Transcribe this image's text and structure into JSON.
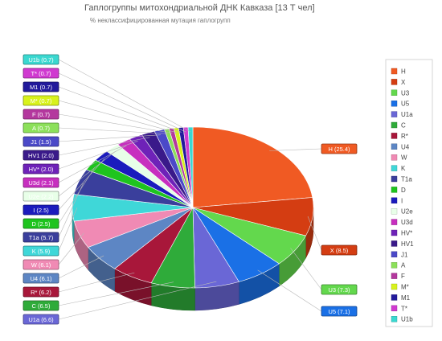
{
  "title": "Гаплогруппы митохондриальной ДНК Кавказа [13 Т чел]",
  "subtitle": "% неклассифицированная мутация гаплогрупп",
  "chart_data": {
    "type": "pie",
    "title": "Гаплогруппы митохондриальной ДНК Кавказа [13 Т чел]",
    "subtitle": "% неклассифицированная мутация гаплогрупп",
    "legend_position": "right",
    "three_d": true,
    "slices": [
      {
        "label": "H",
        "value": 25.4,
        "color": "#f05a23",
        "label_text": "H (25.4)",
        "label_side": "right"
      },
      {
        "label": "X",
        "value": 8.5,
        "color": "#d43d12",
        "label_text": "X (8.5)",
        "label_side": "right"
      },
      {
        "label": "U3",
        "value": 7.3,
        "color": "#63d84d",
        "label_text": "U3 (7.3)",
        "label_side": "right"
      },
      {
        "label": "U5",
        "value": 7.1,
        "color": "#1a70e6",
        "label_text": "U5 (7.1)",
        "label_side": "right"
      },
      {
        "label": "U1a",
        "value": 6.6,
        "color": "#6a67d6",
        "label_text": "U1a (6.6)",
        "label_side": "left"
      },
      {
        "label": "C",
        "value": 6.5,
        "color": "#2fab3a",
        "label_text": "C (6.5)",
        "label_side": "left"
      },
      {
        "label": "R*",
        "value": 6.2,
        "color": "#a8173a",
        "label_text": "R* (6.2)",
        "label_side": "left"
      },
      {
        "label": "U4",
        "value": 6.1,
        "color": "#5d86c4",
        "label_text": "U4 (6.1)",
        "label_side": "left"
      },
      {
        "label": "W",
        "value": 6.1,
        "color": "#f08ab4",
        "label_text": "W (6.1)",
        "label_side": "left"
      },
      {
        "label": "K",
        "value": 5.9,
        "color": "#3fd7d8",
        "label_text": "K (5.9)",
        "label_side": "left"
      },
      {
        "label": "T1a",
        "value": 5.7,
        "color": "#3a3f9c",
        "label_text": "T1a (5.7)",
        "label_side": "left"
      },
      {
        "label": "D",
        "value": 2.5,
        "color": "#1ec41e",
        "label_text": "D (2.5)",
        "label_side": "left"
      },
      {
        "label": "I",
        "value": 2.5,
        "color": "#1b1bbd",
        "label_text": "I (2.5)",
        "label_side": "left"
      },
      {
        "label": "U2e",
        "value": 2.2,
        "color": "#e8ffe8",
        "label_text": "U2e (2.2)",
        "label_side": "left"
      },
      {
        "label": "U3d",
        "value": 2.1,
        "color": "#c72fbf",
        "label_text": "U3d (2.1)",
        "label_side": "left"
      },
      {
        "label": "HV*",
        "value": 2.0,
        "color": "#6e22b8",
        "label_text": "HV* (2.0)",
        "label_side": "left"
      },
      {
        "label": "HV1",
        "value": 2.0,
        "color": "#3a1a8a",
        "label_text": "HV1 (2.0)",
        "label_side": "left"
      },
      {
        "label": "J1",
        "value": 1.5,
        "color": "#4b49c8",
        "label_text": "J1 (1.5)",
        "label_side": "left"
      },
      {
        "label": "A",
        "value": 0.7,
        "color": "#8ce05a",
        "label_text": "A (0.7)",
        "label_side": "left"
      },
      {
        "label": "F",
        "value": 0.7,
        "color": "#b4389e",
        "label_text": "F (0.7)",
        "label_side": "left"
      },
      {
        "label": "M*",
        "value": 0.7,
        "color": "#d8f21c",
        "label_text": "M* (0.7)",
        "label_side": "left"
      },
      {
        "label": "M1",
        "value": 0.7,
        "color": "#221a9c",
        "label_text": "M1 (0.7)",
        "label_side": "left"
      },
      {
        "label": "T*",
        "value": 0.7,
        "color": "#d03ad0",
        "label_text": "T* (0.7)",
        "label_side": "left"
      },
      {
        "label": "U1b",
        "value": 0.7,
        "color": "#3ad8d0",
        "label_text": "U1b (0.7)",
        "label_side": "left"
      }
    ]
  }
}
